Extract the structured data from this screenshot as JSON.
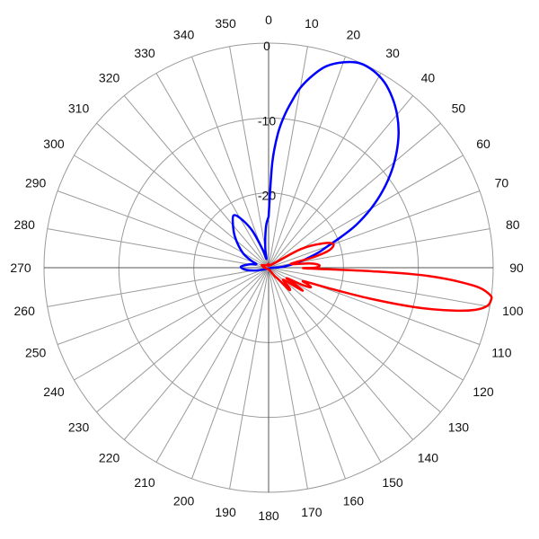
{
  "chart_data": {
    "type": "polar-line",
    "angle_direction": "clockwise",
    "zero_direction": "top",
    "angle_ticks": [
      "0",
      "10",
      "20",
      "30",
      "40",
      "50",
      "60",
      "70",
      "80",
      "90",
      "100",
      "110",
      "120",
      "130",
      "140",
      "150",
      "160",
      "170",
      "180",
      "190",
      "200",
      "210",
      "220",
      "230",
      "240",
      "250",
      "260",
      "270",
      "280",
      "290",
      "300",
      "310",
      "320",
      "330",
      "340",
      "350"
    ],
    "radial_ticks": [
      "0",
      "-10",
      "-20"
    ],
    "radial_range": [
      -30,
      0
    ],
    "grid": true,
    "colors": {
      "series_1": "#0000ff",
      "series_2": "#ff0000",
      "grid": "#9a9a9a",
      "axis": "#000000"
    },
    "series": [
      {
        "color": "#0000ff",
        "points": [
          [
            0,
            -23.2
          ],
          [
            2,
            -16
          ],
          [
            4,
            -12
          ],
          [
            6,
            -9.5
          ],
          [
            8,
            -7.5
          ],
          [
            10,
            -5.6
          ],
          [
            13,
            -3.6
          ],
          [
            16,
            -2
          ],
          [
            20,
            -0.8
          ],
          [
            24,
            -0.1
          ],
          [
            28,
            -0.2
          ],
          [
            32,
            -0.8
          ],
          [
            36,
            -1.9
          ],
          [
            40,
            -3.3
          ],
          [
            44,
            -5
          ],
          [
            48,
            -7
          ],
          [
            52,
            -9.2
          ],
          [
            56,
            -11.6
          ],
          [
            60,
            -14.2
          ],
          [
            64,
            -17
          ],
          [
            67,
            -19.5
          ],
          [
            70,
            -21.6
          ],
          [
            73,
            -23
          ],
          [
            76,
            -24.5
          ],
          [
            80,
            -26
          ],
          [
            86,
            -28
          ],
          [
            92,
            -29.5
          ],
          [
            110,
            -29.8
          ],
          [
            150,
            -29.8
          ],
          [
            200,
            -29.9
          ],
          [
            245,
            -29.5
          ],
          [
            258,
            -28.2
          ],
          [
            265,
            -26.9
          ],
          [
            272,
            -26.3
          ],
          [
            280,
            -27.4
          ],
          [
            286,
            -28.3
          ],
          [
            292,
            -27.5
          ],
          [
            300,
            -26
          ],
          [
            312,
            -24
          ],
          [
            320,
            -22.6
          ],
          [
            326,
            -21.6
          ],
          [
            330,
            -22.3
          ],
          [
            336,
            -24.5
          ],
          [
            342,
            -27.5
          ],
          [
            346,
            -28.8
          ],
          [
            350,
            -27.5
          ],
          [
            354,
            -25.8
          ],
          [
            357,
            -24.2
          ],
          [
            360,
            -23.2
          ]
        ]
      },
      {
        "color": "#ff0000",
        "points": [
          [
            0,
            -29.5
          ],
          [
            40,
            -29.5
          ],
          [
            60,
            -25
          ],
          [
            66,
            -22
          ],
          [
            70,
            -20.8
          ],
          [
            74,
            -21.6
          ],
          [
            77,
            -24
          ],
          [
            80,
            -27
          ],
          [
            84,
            -24.6
          ],
          [
            86,
            -23.5
          ],
          [
            88,
            -23.2
          ],
          [
            90,
            -23.8
          ],
          [
            91,
            -25
          ],
          [
            92,
            -16
          ],
          [
            93,
            -8.5
          ],
          [
            95,
            -2.5
          ],
          [
            97,
            -0.2
          ],
          [
            98.5,
            0
          ],
          [
            100,
            -0.4
          ],
          [
            101.5,
            -1.8
          ],
          [
            103,
            -4.5
          ],
          [
            105,
            -9.5
          ],
          [
            107,
            -16
          ],
          [
            109,
            -22
          ],
          [
            111,
            -25
          ],
          [
            113,
            -24.3
          ],
          [
            115,
            -23.8
          ],
          [
            117,
            -25
          ],
          [
            120,
            -27.2
          ],
          [
            122,
            -26
          ],
          [
            124,
            -24.5
          ],
          [
            126,
            -26.3
          ],
          [
            130,
            -27.5
          ],
          [
            134,
            -26.2
          ],
          [
            137,
            -26
          ],
          [
            140,
            -28
          ],
          [
            145,
            -28.7
          ],
          [
            150,
            -29.4
          ],
          [
            160,
            -29.7
          ],
          [
            200,
            -29.8
          ],
          [
            270,
            -29.5
          ],
          [
            290,
            -29
          ],
          [
            310,
            -29.5
          ],
          [
            360,
            -29.5
          ]
        ]
      }
    ]
  }
}
